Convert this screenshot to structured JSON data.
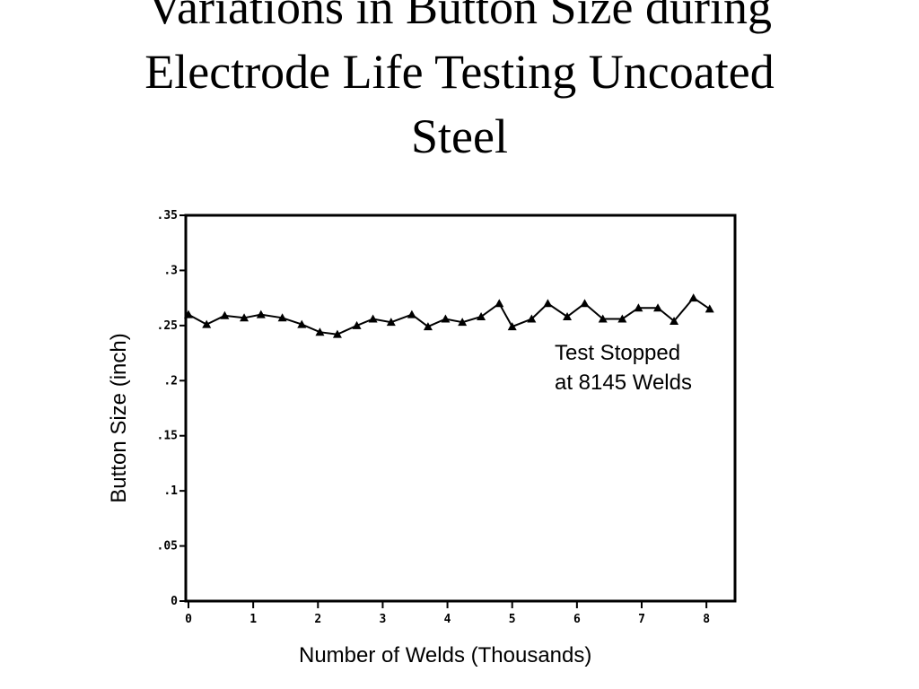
{
  "slide": {
    "title_lines": [
      "Variations in Button Size during",
      "Electrode Life Testing Uncoated",
      "Steel"
    ]
  },
  "chart_data": {
    "type": "line",
    "xlabel": "Number of Welds (Thousands)",
    "ylabel": "Button Size (inch)",
    "xlim": [
      0,
      8.4
    ],
    "ylim": [
      0,
      0.35
    ],
    "x_ticks": [
      "0",
      "1",
      "2",
      "3",
      "4",
      "5",
      "6",
      "7",
      "8"
    ],
    "y_ticks": [
      "0",
      ".05",
      ".1",
      ".15",
      ".2",
      ".25",
      ".3",
      ".35"
    ],
    "grid": false,
    "annotation": [
      "Test Stopped",
      "at 8145 Welds"
    ],
    "series": [
      {
        "marker": "triangle",
        "color": "#000000",
        "x": [
          0.0,
          0.28,
          0.56,
          0.86,
          1.12,
          1.45,
          1.75,
          2.03,
          2.3,
          2.6,
          2.85,
          3.13,
          3.45,
          3.7,
          3.97,
          4.23,
          4.52,
          4.8,
          5.0,
          5.3,
          5.55,
          5.85,
          6.12,
          6.4,
          6.7,
          6.95,
          7.25,
          7.5,
          7.8,
          8.05
        ],
        "y": [
          0.26,
          0.251,
          0.259,
          0.257,
          0.26,
          0.257,
          0.251,
          0.244,
          0.242,
          0.25,
          0.256,
          0.253,
          0.26,
          0.249,
          0.256,
          0.253,
          0.258,
          0.27,
          0.249,
          0.256,
          0.27,
          0.258,
          0.27,
          0.256,
          0.256,
          0.266,
          0.266,
          0.254,
          0.275,
          0.265
        ]
      }
    ]
  }
}
